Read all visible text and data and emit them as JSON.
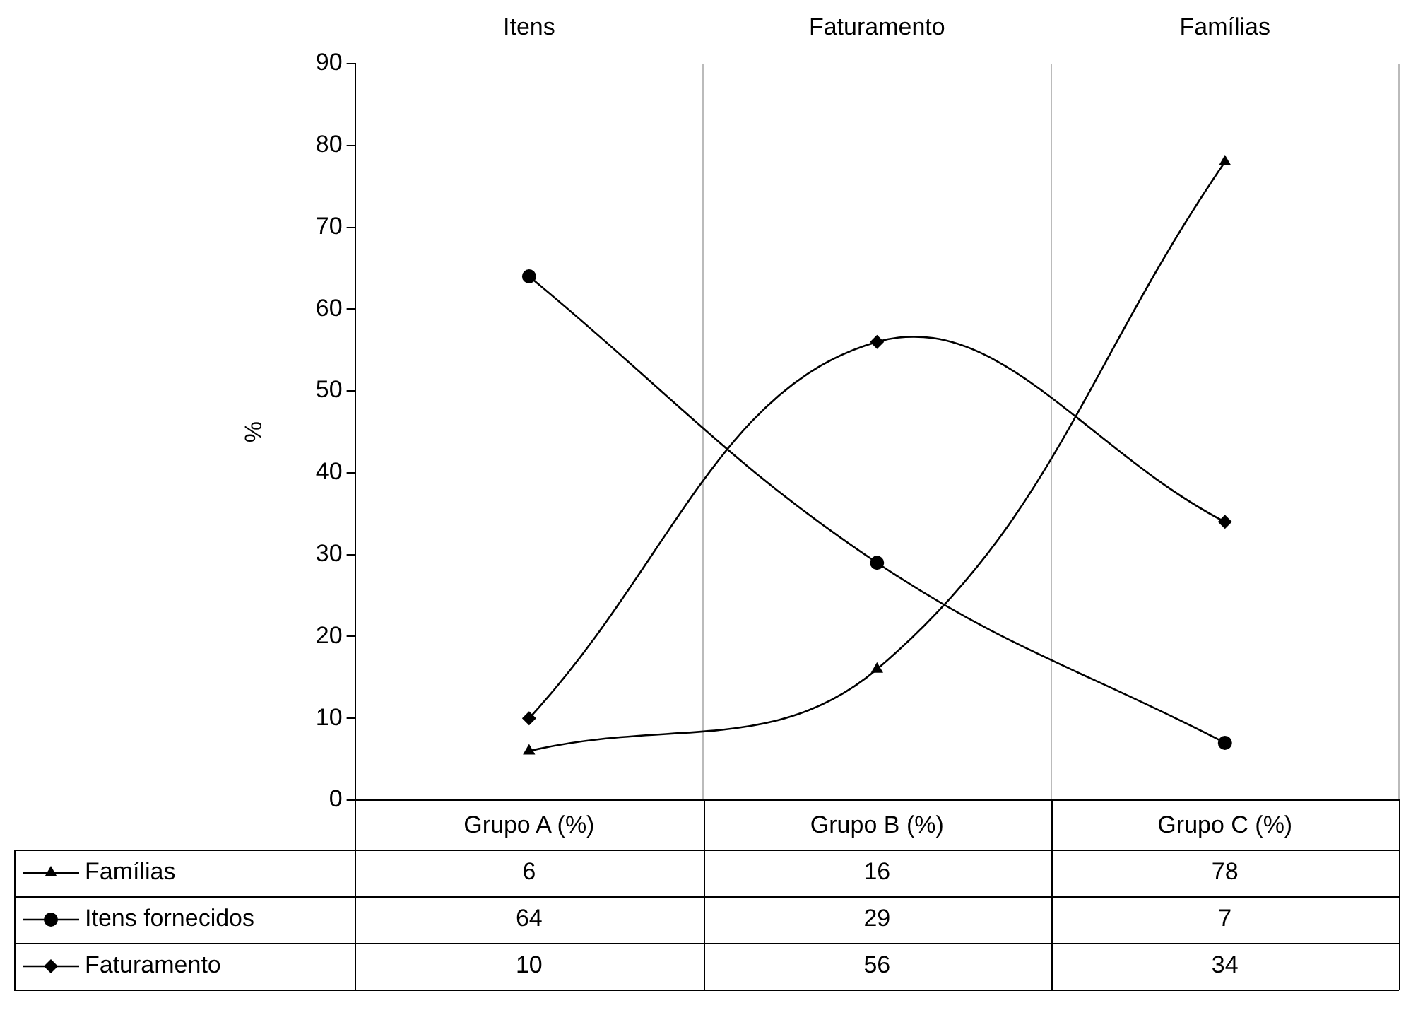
{
  "chart_data": {
    "type": "line",
    "ylabel": "%",
    "categories": [
      "Grupo A (%)",
      "Grupo B (%)",
      "Grupo C (%)"
    ],
    "annotations": [
      "Itens",
      "Faturamento",
      "Famílias"
    ],
    "series": [
      {
        "name": "Famílias",
        "color": "#000000",
        "marker": "triangle",
        "values": [
          6,
          16,
          78
        ]
      },
      {
        "name": "Itens fornecidos",
        "color": "#000000",
        "marker": "circle",
        "values": [
          64,
          29,
          7
        ]
      },
      {
        "name": "Faturamento",
        "color": "#000000",
        "marker": "diamond",
        "values": [
          10,
          56,
          34
        ]
      }
    ],
    "ylim": [
      0,
      90
    ],
    "yticks": [
      0,
      10,
      20,
      30,
      40,
      50,
      60,
      70,
      80,
      90
    ],
    "grid": "x",
    "legend": "bottom",
    "data_labels": true
  }
}
